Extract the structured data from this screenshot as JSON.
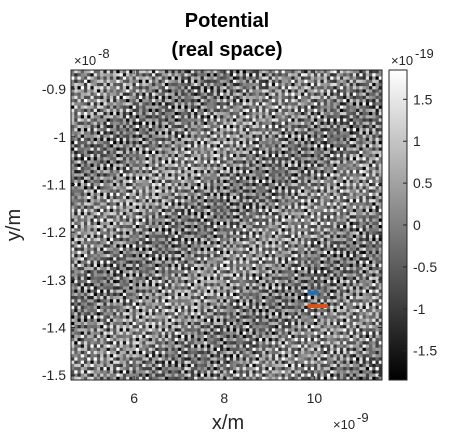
{
  "chart_data": {
    "type": "heatmap",
    "title_lines": [
      "Potential",
      "(real space)"
    ],
    "xlabel": "x/m",
    "ylabel": "y/m",
    "x_exponent_label": "×10",
    "x_exponent": "-9",
    "y_exponent_label": "×10",
    "y_exponent": "-8",
    "colorbar_exponent_label": "×10",
    "colorbar_exponent": "-19",
    "xlim": [
      4.6,
      11.5
    ],
    "ylim": [
      -1.51,
      -0.86
    ],
    "clim": [
      -1.85,
      1.85
    ],
    "colormap": "gray",
    "grid": false,
    "x_ticks": [
      {
        "value": 6,
        "label": "6"
      },
      {
        "value": 8,
        "label": "8"
      },
      {
        "value": 10,
        "label": "10"
      }
    ],
    "y_ticks": [
      {
        "value": -0.9,
        "label": "-0.9"
      },
      {
        "value": -1.0,
        "label": "-1"
      },
      {
        "value": -1.1,
        "label": "-1.1"
      },
      {
        "value": -1.2,
        "label": "-1.2"
      },
      {
        "value": -1.3,
        "label": "-1.3"
      },
      {
        "value": -1.4,
        "label": "-1.4"
      },
      {
        "value": -1.5,
        "label": "-1.5"
      }
    ],
    "colorbar_ticks": [
      {
        "value": 1.5,
        "label": "1.5"
      },
      {
        "value": 1.0,
        "label": "1"
      },
      {
        "value": 0.5,
        "label": "0.5"
      },
      {
        "value": 0.0,
        "label": "0"
      },
      {
        "value": -0.5,
        "label": "-0.5"
      },
      {
        "value": -1.0,
        "label": "-1"
      },
      {
        "value": -1.5,
        "label": "-1.5"
      }
    ],
    "markers": [
      {
        "color": "#1f6fb5",
        "x": [
          9.85,
          10.1
        ],
        "y": [
          -1.327,
          -1.327
        ]
      },
      {
        "color": "#d95319",
        "x": [
          9.85,
          10.3
        ],
        "y": [
          -1.355,
          -1.355
        ]
      }
    ]
  }
}
